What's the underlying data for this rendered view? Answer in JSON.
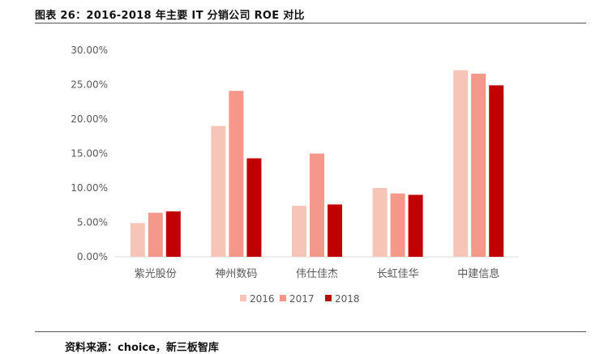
{
  "figure": {
    "title": "图表 26：2016-2018 年主要 IT 分销公司 ROE 对比",
    "source": "资料来源：choice，新三板智库"
  },
  "chart_data": {
    "type": "bar",
    "categories": [
      "紫光股份",
      "神州数码",
      "伟仕佳杰",
      "长虹佳华",
      "中建信息"
    ],
    "series": [
      {
        "name": "2016",
        "color": "#f7c4b8",
        "values": [
          4.9,
          19.0,
          7.4,
          10.0,
          27.1
        ]
      },
      {
        "name": "2017",
        "color": "#f4998a",
        "values": [
          6.4,
          24.1,
          15.0,
          9.2,
          26.6
        ]
      },
      {
        "name": "2018",
        "color": "#c00000",
        "values": [
          6.6,
          14.3,
          7.6,
          9.0,
          24.9
        ]
      }
    ],
    "y_ticks": [
      "0.00%",
      "5.00%",
      "10.00%",
      "15.00%",
      "20.00%",
      "25.00%",
      "30.00%"
    ],
    "ylim": [
      0,
      30
    ],
    "y_unit": "%",
    "grid": false,
    "legend_position": "bottom"
  }
}
